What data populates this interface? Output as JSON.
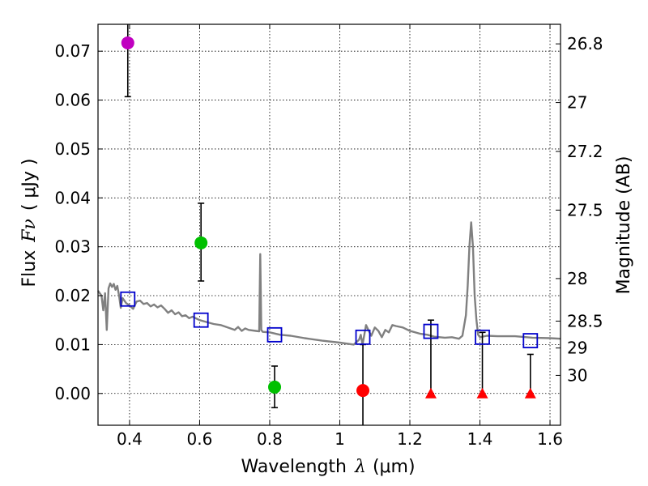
{
  "chart_data": {
    "type": "scatter",
    "title": "",
    "xlabel": "Wavelength",
    "xlabel_symbol": "λ",
    "xlabel_unit": "(μm)",
    "ylabel": "Flux",
    "ylabel_symbol": "Fν",
    "ylabel_unit": "( μJy )",
    "y2label": "Magnitude (AB)",
    "xlim": [
      0.31,
      1.63
    ],
    "ylim": [
      -0.0065,
      0.0755
    ],
    "grid": true,
    "colors": {
      "model": "#808080",
      "magenta": "#c000c0",
      "green": "#00c000",
      "red": "#ff0000",
      "blue": "#0000cc",
      "errorbar": "#000000",
      "grid": "#000000"
    },
    "x_ticks": [
      0.4,
      0.6,
      0.8,
      1.0,
      1.2,
      1.4,
      1.6
    ],
    "x_tick_labels": [
      "0.4",
      "0.6",
      "0.8",
      "1",
      "1.2",
      "1.4",
      "1.6"
    ],
    "y_ticks": [
      0.0,
      0.01,
      0.02,
      0.03,
      0.04,
      0.05,
      0.06,
      0.07
    ],
    "y_tick_labels": [
      "0.00",
      "0.01",
      "0.02",
      "0.03",
      "0.04",
      "0.05",
      "0.06",
      "0.07"
    ],
    "mag_ticks": [
      {
        "label": "26.8",
        "flux": 0.0715
      },
      {
        "label": "27",
        "flux": 0.0595
      },
      {
        "label": "27.2",
        "flux": 0.0495
      },
      {
        "label": "27.5",
        "flux": 0.0375
      },
      {
        "label": "28",
        "flux": 0.0235
      },
      {
        "label": "28.5",
        "flux": 0.0148
      },
      {
        "label": "29",
        "flux": 0.0093
      },
      {
        "label": "30",
        "flux": 0.0037
      }
    ],
    "detections": [
      {
        "x": 0.395,
        "y": 0.0717,
        "yerr_low": 0.011,
        "yerr_high": 0.009,
        "color": "magenta"
      },
      {
        "x": 0.604,
        "y": 0.0308,
        "yerr_low": 0.0078,
        "yerr_high": 0.0081,
        "color": "green"
      },
      {
        "x": 0.814,
        "y": 0.0013,
        "yerr_low": 0.0042,
        "yerr_high": 0.0043,
        "color": "green"
      },
      {
        "x": 1.066,
        "y": 0.0006,
        "yerr_low": 0.008,
        "yerr_high": 0.0094,
        "color": "red"
      }
    ],
    "upper_limits": [
      {
        "x": 1.26,
        "y": 0.0,
        "ytop": 0.015,
        "color": "red"
      },
      {
        "x": 1.407,
        "y": 0.0,
        "ytop": 0.0125,
        "color": "red"
      },
      {
        "x": 1.544,
        "y": 0.0,
        "ytop": 0.008,
        "color": "red"
      }
    ],
    "model_fluxes": [
      {
        "x": 0.395,
        "y": 0.0193
      },
      {
        "x": 0.604,
        "y": 0.015
      },
      {
        "x": 0.814,
        "y": 0.012
      },
      {
        "x": 1.066,
        "y": 0.0115
      },
      {
        "x": 1.26,
        "y": 0.0127
      },
      {
        "x": 1.407,
        "y": 0.0115
      },
      {
        "x": 1.544,
        "y": 0.0108
      }
    ],
    "model_spectrum": {
      "x": [
        0.31,
        0.32,
        0.325,
        0.33,
        0.335,
        0.34,
        0.345,
        0.35,
        0.355,
        0.36,
        0.365,
        0.37,
        0.375,
        0.38,
        0.39,
        0.4,
        0.41,
        0.42,
        0.43,
        0.44,
        0.45,
        0.46,
        0.47,
        0.48,
        0.49,
        0.5,
        0.51,
        0.52,
        0.53,
        0.54,
        0.55,
        0.56,
        0.57,
        0.58,
        0.6,
        0.62,
        0.64,
        0.66,
        0.68,
        0.7,
        0.71,
        0.72,
        0.73,
        0.74,
        0.76,
        0.77,
        0.773,
        0.776,
        0.78,
        0.8,
        0.83,
        0.86,
        0.9,
        0.95,
        1.0,
        1.04,
        1.055,
        1.06,
        1.065,
        1.075,
        1.085,
        1.09,
        1.1,
        1.11,
        1.12,
        1.13,
        1.14,
        1.15,
        1.16,
        1.18,
        1.2,
        1.23,
        1.25,
        1.27,
        1.3,
        1.32,
        1.34,
        1.35,
        1.36,
        1.365,
        1.37,
        1.375,
        1.38,
        1.385,
        1.39,
        1.395,
        1.4,
        1.42,
        1.45,
        1.5,
        1.55,
        1.6,
        1.63
      ],
      "y": [
        0.021,
        0.02,
        0.017,
        0.0205,
        0.013,
        0.0215,
        0.0225,
        0.0218,
        0.0224,
        0.0212,
        0.022,
        0.02,
        0.0175,
        0.0195,
        0.0185,
        0.018,
        0.0173,
        0.0188,
        0.019,
        0.0183,
        0.0185,
        0.0178,
        0.0182,
        0.0176,
        0.018,
        0.0173,
        0.0165,
        0.017,
        0.0162,
        0.0166,
        0.0158,
        0.016,
        0.0154,
        0.0157,
        0.015,
        0.0146,
        0.0142,
        0.014,
        0.0135,
        0.013,
        0.0136,
        0.0128,
        0.0133,
        0.013,
        0.0128,
        0.0127,
        0.0285,
        0.013,
        0.0126,
        0.0125,
        0.012,
        0.0118,
        0.0113,
        0.0108,
        0.0104,
        0.01,
        0.011,
        0.012,
        0.01,
        0.014,
        0.0125,
        0.0118,
        0.0135,
        0.0128,
        0.0115,
        0.013,
        0.0125,
        0.014,
        0.0138,
        0.0135,
        0.0128,
        0.0122,
        0.012,
        0.0116,
        0.0114,
        0.0115,
        0.0112,
        0.0118,
        0.016,
        0.022,
        0.03,
        0.035,
        0.03,
        0.02,
        0.015,
        0.012,
        0.0115,
        0.0118,
        0.0117,
        0.0117,
        0.0114,
        0.0113,
        0.0112
      ]
    }
  }
}
